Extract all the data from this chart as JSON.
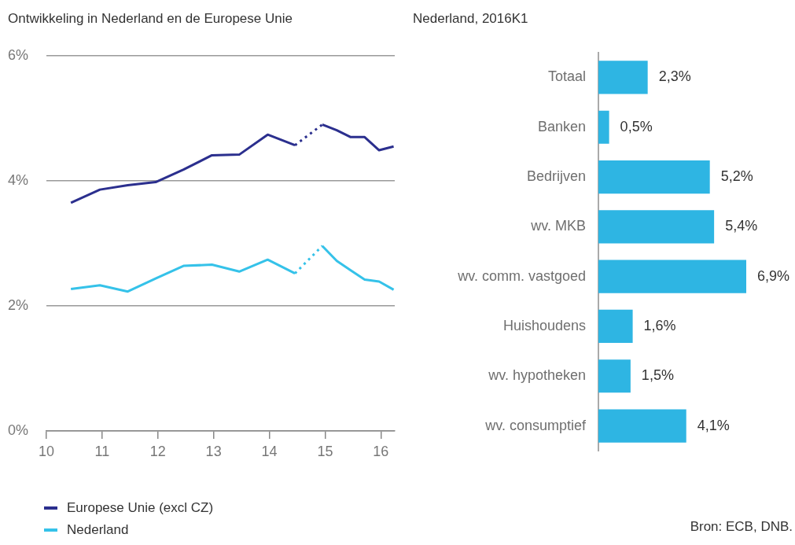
{
  "chart_data": [
    {
      "type": "line",
      "title": "Ontwikkeling in Nederland en de Europese Unie",
      "xlim": [
        10,
        16.25
      ],
      "xticks": [
        10,
        11,
        12,
        13,
        14,
        15,
        16
      ],
      "ylim": [
        0,
        6
      ],
      "yticks": [
        {
          "value": 0,
          "label": "0%"
        },
        {
          "value": 2,
          "label": "2%"
        },
        {
          "value": 4,
          "label": "4%"
        },
        {
          "value": 6,
          "label": "6%"
        }
      ],
      "grid": "y",
      "legend": "bottom",
      "series": [
        {
          "name": "Europese Unie (excl CZ)",
          "color": "#2b2f8e",
          "x": [
            10.44,
            10.96,
            11.46,
            11.96,
            12.46,
            12.97,
            13.46,
            13.97,
            14.46
          ],
          "values": [
            3.65,
            3.86,
            3.93,
            3.98,
            4.18,
            4.41,
            4.42,
            4.74,
            4.57
          ]
        },
        {
          "color": "#2b2f8e",
          "line_style": "dotted",
          "x": [
            14.46,
            14.95
          ],
          "values": [
            4.57,
            4.9
          ]
        },
        {
          "color": "#2b2f8e",
          "x": [
            14.95,
            15.21,
            15.46,
            15.71,
            15.97,
            16.23
          ],
          "values": [
            4.9,
            4.81,
            4.7,
            4.7,
            4.49,
            4.55
          ]
        },
        {
          "name": "Nederland",
          "color": "#35c2e9",
          "x": [
            10.44,
            10.96,
            11.46,
            11.96,
            12.46,
            12.97,
            13.46,
            13.97,
            14.46
          ],
          "values": [
            2.27,
            2.33,
            2.23,
            2.44,
            2.64,
            2.66,
            2.55,
            2.74,
            2.52
          ]
        },
        {
          "color": "#35c2e9",
          "line_style": "dotted",
          "x": [
            14.46,
            14.95
          ],
          "values": [
            2.52,
            2.96
          ]
        },
        {
          "color": "#35c2e9",
          "x": [
            14.95,
            15.21,
            15.46,
            15.71,
            15.97,
            16.23
          ],
          "values": [
            2.96,
            2.72,
            2.57,
            2.42,
            2.39,
            2.26
          ]
        }
      ]
    },
    {
      "type": "bar",
      "title": "Nederland, 2016K1",
      "orientation": "horizontal",
      "categories": [
        "Totaal",
        "Banken",
        "Bedrijven",
        "wv. MKB",
        "wv. comm. vastgoed",
        "Huishoudens",
        "wv. hypotheken",
        "wv. consumptief"
      ],
      "values": [
        2.3,
        0.5,
        5.2,
        5.4,
        6.9,
        1.6,
        1.5,
        4.1
      ],
      "color": "#2eb5e3",
      "value_labels": [
        "2,3%",
        "0,5%",
        "5,2%",
        "5,4%",
        "6,9%",
        "1,6%",
        "1,5%",
        "4,1%"
      ],
      "tick_labels": "y",
      "grid": false,
      "annotations": [
        "Bron: ECB, DNB."
      ]
    }
  ]
}
